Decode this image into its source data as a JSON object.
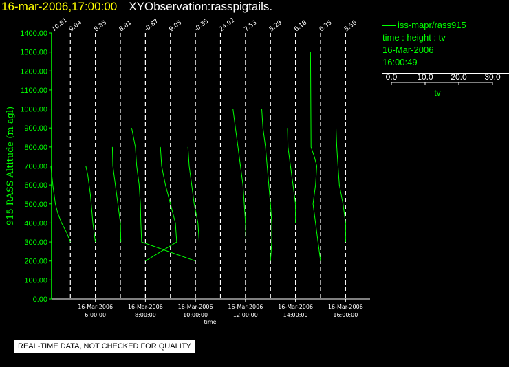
{
  "header": {
    "time": "16-mar-2006,17:00:00",
    "title": "XYObservation:rasspigtails."
  },
  "legend": {
    "series": "iss-mapr/rass915",
    "description": "time : height : tv",
    "date": "16-Mar-2006",
    "time": "16:00:49",
    "scale_ticks": [
      "0.0",
      "10.0",
      "20.0",
      "30.0"
    ],
    "scale_label": "tv"
  },
  "footer": {
    "notice": "REAL-TIME DATA, NOT CHECKED FOR QUALITY"
  },
  "colors": {
    "background": "#000000",
    "data": "#00ff00",
    "header_time": "#ffff00",
    "header_title": "#ffffff",
    "gridline": "#ffffff"
  },
  "chart_data": {
    "type": "line",
    "xlabel": "time",
    "ylabel": "915 RASS Altitude (m agl)",
    "x_unit": "hours",
    "xlim": [
      4.25,
      16.98
    ],
    "ylim": [
      0,
      1400
    ],
    "y_ticks": [
      0,
      100,
      200,
      300,
      400,
      500,
      600,
      700,
      800,
      900,
      1000,
      1100,
      1200,
      1300,
      1400
    ],
    "y_tick_labels": [
      "0.00",
      "100.00",
      "200.00",
      "300.00",
      "400.00",
      "500.00",
      "600.00",
      "700.00",
      "800.00",
      "900.00",
      "1000.00",
      "1100.00",
      "1200.00",
      "1300.00",
      "1400.00"
    ],
    "x_ticks": [
      {
        "x": 6,
        "date": "16-Mar-2006",
        "time": "6:00:00"
      },
      {
        "x": 8,
        "date": "16-Mar-2006",
        "time": "8:00:00"
      },
      {
        "x": 10,
        "date": "16-Mar-2006",
        "time": "10:00:00"
      },
      {
        "x": 12,
        "date": "16-Mar-2006",
        "time": "12:00:00"
      },
      {
        "x": 14,
        "date": "16-Mar-2006",
        "time": "14:00:00"
      },
      {
        "x": 16,
        "date": "16-Mar-2006",
        "time": "16:00:00"
      }
    ],
    "profile_scale_hours_per_tv": 0.035,
    "profiles": [
      {
        "time": 4.0,
        "label": "10.61",
        "points": []
      },
      {
        "time": 5.0,
        "label": "9.04",
        "points": [
          [
            -0.78,
            700
          ],
          [
            -0.7,
            600
          ],
          [
            -0.6,
            500
          ],
          [
            -0.5,
            450
          ],
          [
            -0.35,
            400
          ],
          [
            -0.15,
            350
          ],
          [
            0,
            300
          ]
        ]
      },
      {
        "time": 6.0,
        "label": "8.85",
        "points": [
          [
            -0.38,
            700
          ],
          [
            -0.3,
            650
          ],
          [
            -0.2,
            550
          ],
          [
            -0.1,
            400
          ],
          [
            0,
            300
          ]
        ]
      },
      {
        "time": 7.0,
        "label": "8.81",
        "points": [
          [
            -0.32,
            800
          ],
          [
            -0.3,
            700
          ],
          [
            -0.2,
            600
          ],
          [
            -0.1,
            500
          ],
          [
            0,
            400
          ],
          [
            0.02,
            300
          ]
        ]
      },
      {
        "time": 8.0,
        "label": "-0.87",
        "points": [
          [
            -0.55,
            900
          ],
          [
            -0.4,
            800
          ],
          [
            -0.35,
            700
          ],
          [
            -0.25,
            600
          ],
          [
            -0.2,
            500
          ],
          [
            -0.18,
            400
          ],
          [
            -0.15,
            300
          ],
          [
            2.0,
            200
          ]
        ]
      },
      {
        "time": 9.0,
        "label": "9.05",
        "points": [
          [
            -0.4,
            800
          ],
          [
            -0.35,
            700
          ],
          [
            -0.2,
            600
          ],
          [
            0,
            500
          ],
          [
            0.2,
            400
          ],
          [
            0.25,
            300
          ],
          [
            -1.0,
            200
          ]
        ]
      },
      {
        "time": 10.0,
        "label": "-0.35",
        "points": [
          [
            -0.3,
            800
          ],
          [
            -0.25,
            700
          ],
          [
            -0.15,
            600
          ],
          [
            -0.05,
            500
          ],
          [
            0.1,
            400
          ],
          [
            0.15,
            300
          ]
        ]
      },
      {
        "time": 11.0,
        "label": "24.92",
        "points": []
      },
      {
        "time": 12.0,
        "label": "7.53",
        "points": [
          [
            -0.5,
            1000
          ],
          [
            -0.4,
            900
          ],
          [
            -0.3,
            800
          ],
          [
            -0.2,
            700
          ],
          [
            -0.1,
            600
          ],
          [
            -0.05,
            500
          ],
          [
            0,
            400
          ],
          [
            0.02,
            300
          ]
        ]
      },
      {
        "time": 13.0,
        "label": "5.29",
        "points": [
          [
            -0.35,
            1000
          ],
          [
            -0.3,
            900
          ],
          [
            -0.2,
            800
          ],
          [
            -0.1,
            650
          ],
          [
            0,
            500
          ],
          [
            0.05,
            400
          ],
          [
            0.05,
            300
          ],
          [
            0,
            200
          ]
        ]
      },
      {
        "time": 14.0,
        "label": "6.18",
        "points": [
          [
            -0.32,
            900
          ],
          [
            -0.3,
            800
          ],
          [
            -0.2,
            700
          ],
          [
            -0.1,
            600
          ],
          [
            0,
            500
          ],
          [
            0,
            400
          ]
        ]
      },
      {
        "time": 15.0,
        "label": "6.35",
        "points": [
          [
            -0.4,
            1300
          ],
          [
            -0.38,
            800
          ],
          [
            -0.25,
            750
          ],
          [
            -0.15,
            700
          ],
          [
            -0.2,
            600
          ],
          [
            -0.3,
            500
          ],
          [
            -0.2,
            400
          ],
          [
            -0.1,
            300
          ],
          [
            0,
            200
          ]
        ]
      },
      {
        "time": 16.0,
        "label": "5.56",
        "points": [
          [
            -0.38,
            900
          ],
          [
            -0.35,
            800
          ],
          [
            -0.3,
            700
          ],
          [
            -0.25,
            600
          ],
          [
            -0.1,
            500
          ],
          [
            0,
            400
          ],
          [
            0,
            300
          ]
        ]
      }
    ]
  }
}
